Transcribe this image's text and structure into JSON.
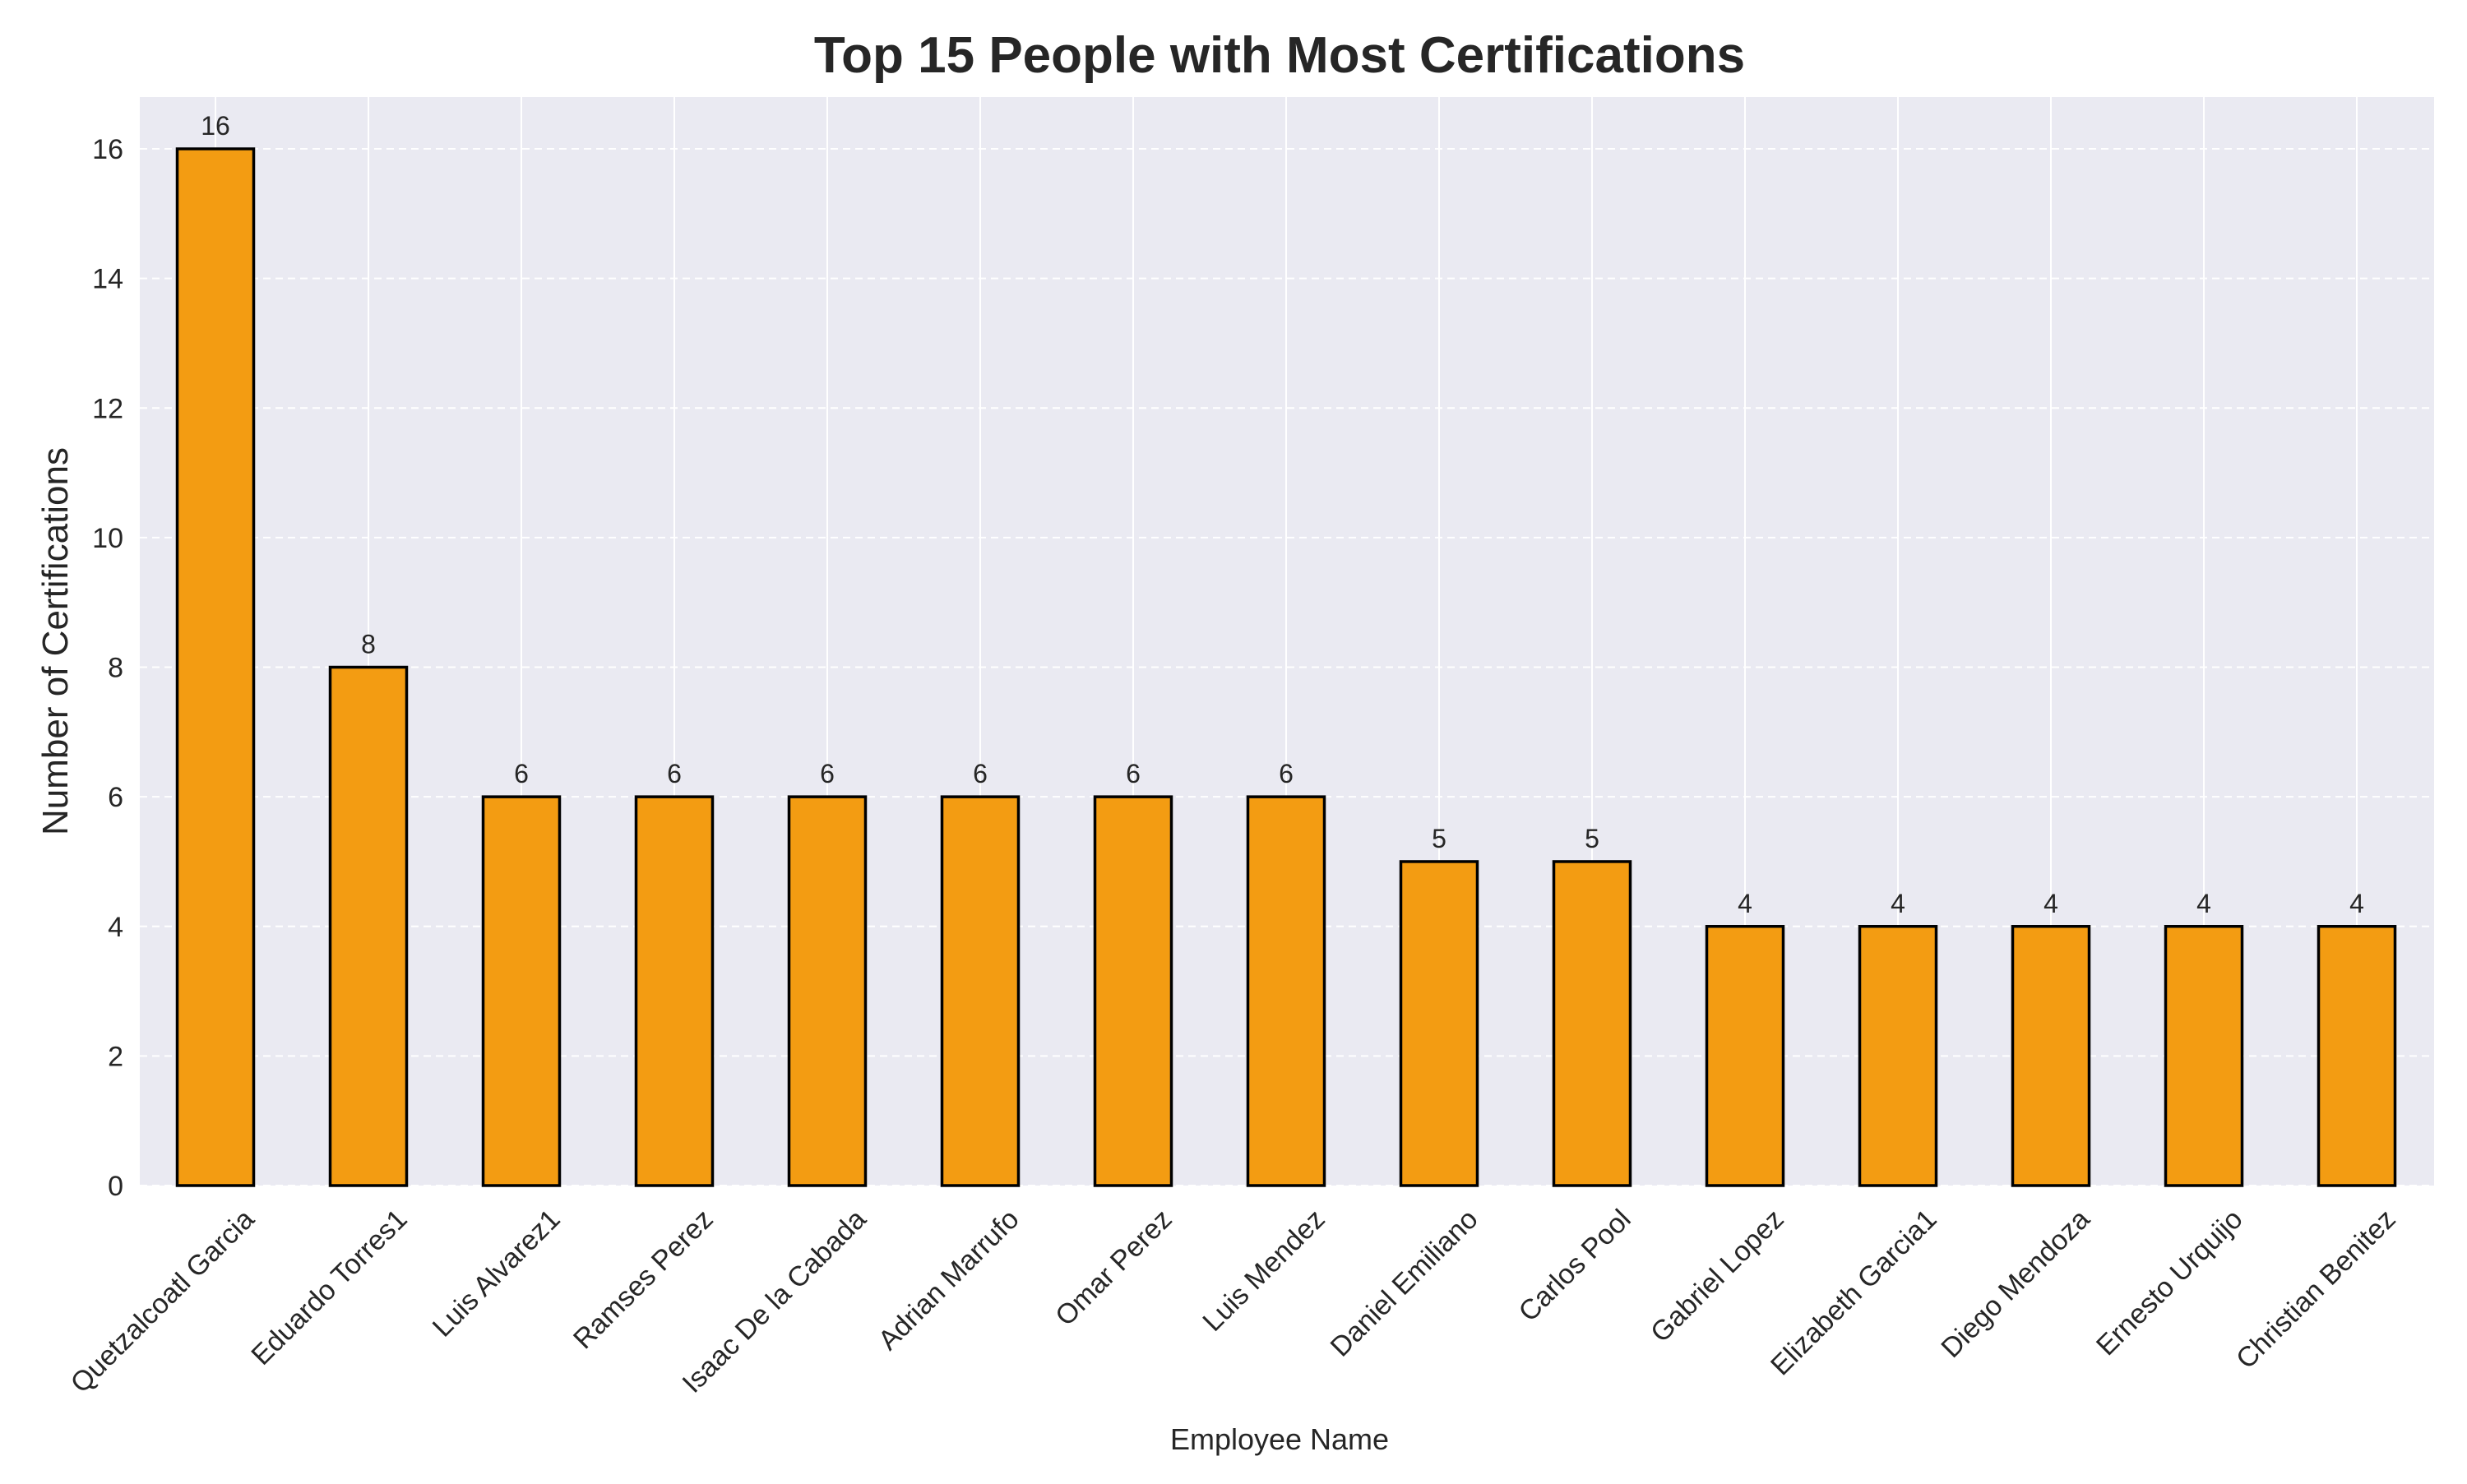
{
  "chart_data": {
    "type": "bar",
    "title": "Top 15 People with Most Certifications",
    "xlabel": "Employee Name",
    "ylabel": "Number of Certifications",
    "categories": [
      "Quetzalcoatl Garcia",
      "Eduardo Torres1",
      "Luis Alvarez1",
      "Ramses Perez",
      "Isaac De la Cabada",
      "Adrian Marrufo",
      "Omar Perez",
      "Luis Mendez",
      "Daniel Emiliano",
      "Carlos Pool",
      "Gabriel Lopez",
      "Elizabeth Garcia1",
      "Diego Mendoza",
      "Ernesto Urquijo",
      "Christian Benitez"
    ],
    "values": [
      16,
      8,
      6,
      6,
      6,
      6,
      6,
      6,
      5,
      5,
      4,
      4,
      4,
      4,
      4
    ],
    "ylim": [
      0,
      16.8
    ],
    "yticks": [
      "0",
      "2",
      "4",
      "6",
      "8",
      "10",
      "12",
      "14",
      "16"
    ],
    "grid": true,
    "bar_color": "#f39c12",
    "bar_edge_color": "#000000",
    "background_color": "#eaeaf2",
    "gridline_color": "#ffffff"
  }
}
